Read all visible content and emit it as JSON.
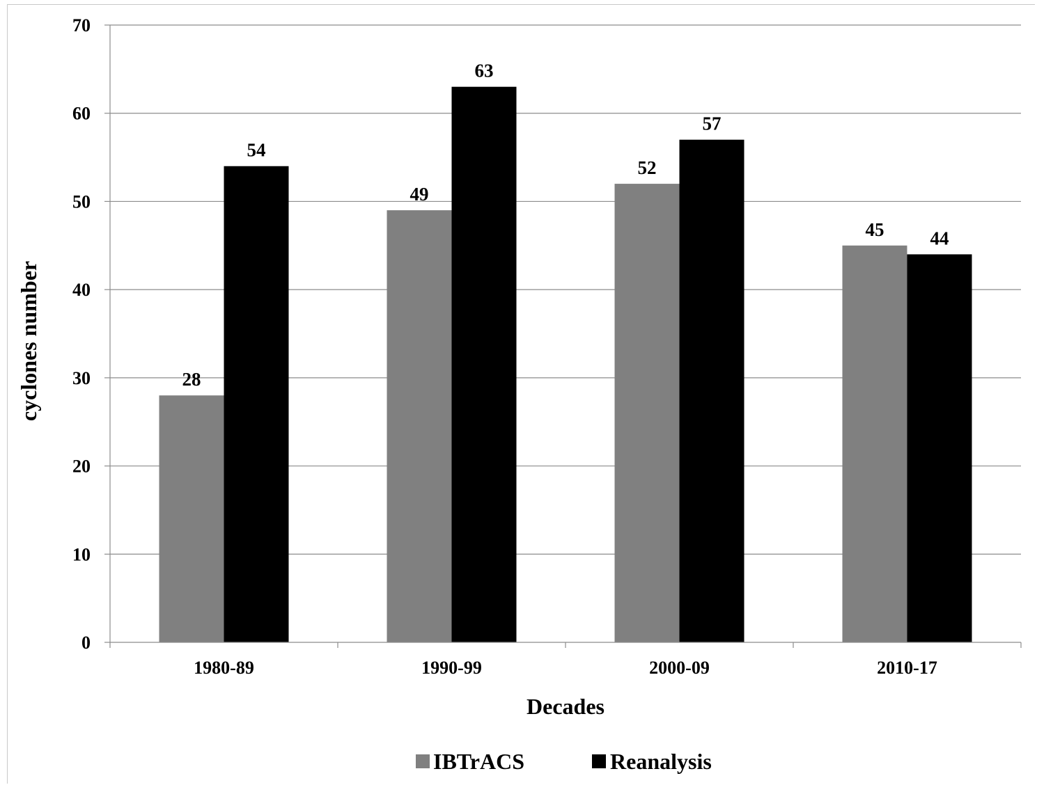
{
  "chart_data": {
    "type": "bar",
    "categories": [
      "1980-89",
      "1990-99",
      "2000-09",
      "2010-17"
    ],
    "series": [
      {
        "name": "IBTrACS",
        "values": [
          28,
          49,
          52,
          45
        ],
        "color": "#808080"
      },
      {
        "name": "Reanalysis",
        "values": [
          54,
          63,
          57,
          44
        ],
        "color": "#000000"
      }
    ],
    "title": "",
    "xlabel": "Decades",
    "ylabel": "cyclones number",
    "ylim": [
      0,
      70
    ],
    "yticks": [
      0,
      10,
      20,
      30,
      40,
      50,
      60,
      70
    ],
    "grid": true,
    "legend_position": "bottom"
  }
}
